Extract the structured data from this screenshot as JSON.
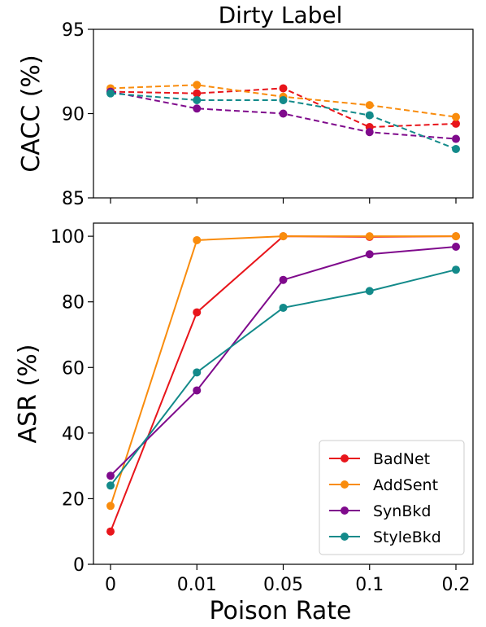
{
  "chart_data": {
    "title": "Dirty Label",
    "xlabel": "Poison Rate",
    "categories": [
      "0",
      "0.01",
      "0.05",
      "0.1",
      "0.2"
    ],
    "legend": {
      "position": "lower-right"
    },
    "panels": [
      {
        "id": "cacc",
        "type": "line",
        "line_style": "dashed",
        "ylabel": "CACC (%)",
        "ylim": [
          85,
          95
        ],
        "yticks": [
          85,
          90,
          95
        ],
        "series": [
          {
            "name": "BadNet",
            "color": "#e8151b",
            "values": [
              91.3,
              91.2,
              91.5,
              89.2,
              89.4
            ]
          },
          {
            "name": "AddSent",
            "color": "#f98c0d",
            "values": [
              91.5,
              91.7,
              91.0,
              90.5,
              89.8
            ]
          },
          {
            "name": "SynBkd",
            "color": "#7f0a8c",
            "values": [
              91.3,
              90.3,
              90.0,
              88.9,
              88.5
            ]
          },
          {
            "name": "StyleBkd",
            "color": "#138a8a",
            "values": [
              91.2,
              90.8,
              90.8,
              89.9,
              87.9
            ]
          }
        ]
      },
      {
        "id": "asr",
        "type": "line",
        "line_style": "solid",
        "ylabel": "ASR (%)",
        "ylim": [
          0,
          104
        ],
        "yticks": [
          0,
          20,
          40,
          60,
          80,
          100
        ],
        "series": [
          {
            "name": "BadNet",
            "color": "#e8151b",
            "values": [
              10,
              76.8,
              100,
              99.8,
              100
            ]
          },
          {
            "name": "AddSent",
            "color": "#f98c0d",
            "values": [
              17.8,
              98.8,
              100,
              100,
              100
            ]
          },
          {
            "name": "SynBkd",
            "color": "#7f0a8c",
            "values": [
              27,
              53,
              86.7,
              94.5,
              96.8
            ]
          },
          {
            "name": "StyleBkd",
            "color": "#138a8a",
            "values": [
              24,
              58.5,
              78.2,
              83.3,
              89.8
            ]
          }
        ]
      }
    ]
  }
}
